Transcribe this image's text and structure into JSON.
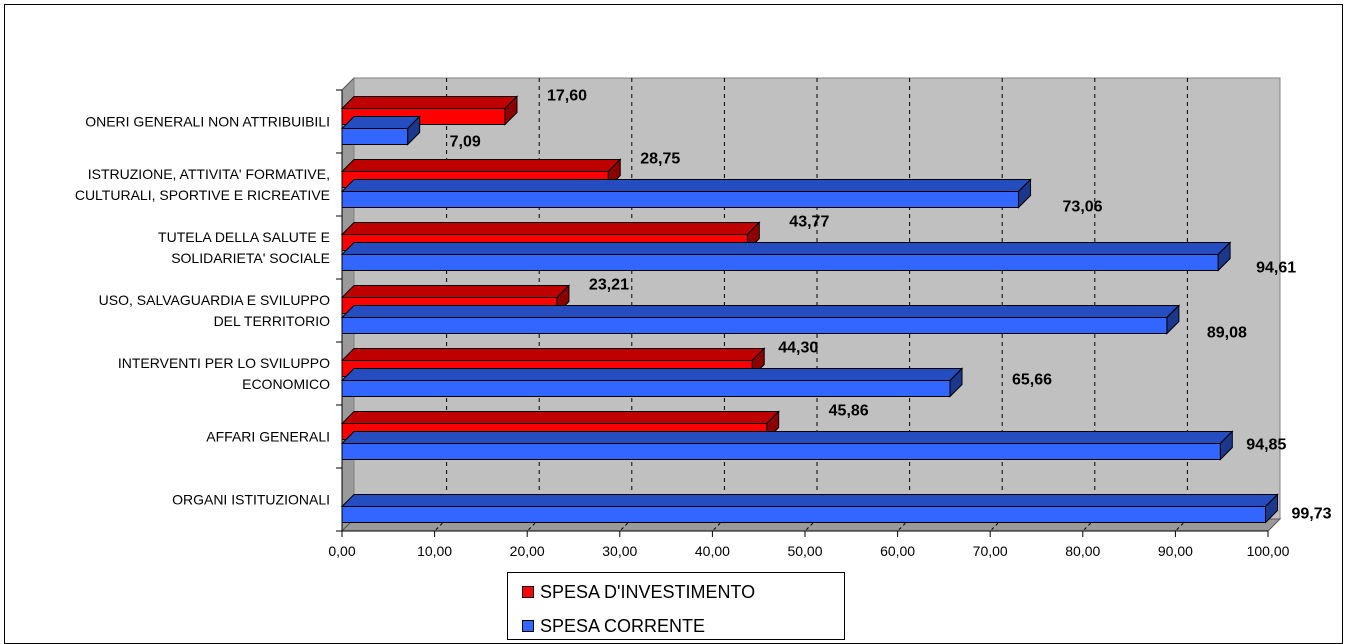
{
  "chart_data": {
    "type": "bar",
    "orientation": "horizontal",
    "categories": [
      [
        "ONERI GENERALI NON ATTRIBUIBILI"
      ],
      [
        "ISTRUZIONE, ATTIVITA' FORMATIVE,",
        "CULTURALI, SPORTIVE E RICREATIVE"
      ],
      [
        "TUTELA DELLA SALUTE E",
        "SOLIDARIETA' SOCIALE"
      ],
      [
        "USO, SALVAGUARDIA E SVILUPPO",
        "DEL TERRITORIO"
      ],
      [
        "INTERVENTI PER LO SVILUPPO",
        "ECONOMICO"
      ],
      [
        "AFFARI GENERALI"
      ],
      [
        "ORGANI ISTITUZIONALI"
      ]
    ],
    "series": [
      {
        "name": "SPESA D'INVESTIMENTO",
        "color": "#ff0000",
        "values": [
          17.6,
          28.75,
          43.77,
          23.21,
          44.3,
          45.86,
          null
        ],
        "labels": [
          "17,60",
          "28,75",
          "43,77",
          "23,21",
          "44,30",
          "45,86",
          null
        ]
      },
      {
        "name": "SPESA CORRENTE",
        "color": "#3366ff",
        "values": [
          7.09,
          73.06,
          94.61,
          89.08,
          65.66,
          94.85,
          99.73
        ],
        "labels": [
          "7,09",
          "73,06",
          "94,61",
          "89,08",
          "65,66",
          "94,85",
          "99,73"
        ]
      }
    ],
    "xlim": [
      0,
      100
    ],
    "xticks": [
      "0,00",
      "10,00",
      "20,00",
      "30,00",
      "40,00",
      "50,00",
      "60,00",
      "70,00",
      "80,00",
      "90,00",
      "100,00"
    ],
    "grid": "vertical dashed",
    "legend_position": "bottom",
    "plot_background": "#c0c0c0"
  },
  "legend": {
    "items": [
      {
        "label": "SPESA D'INVESTIMENTO",
        "color": "#ff0000"
      },
      {
        "label": "SPESA CORRENTE",
        "color": "#3366ff"
      }
    ]
  }
}
